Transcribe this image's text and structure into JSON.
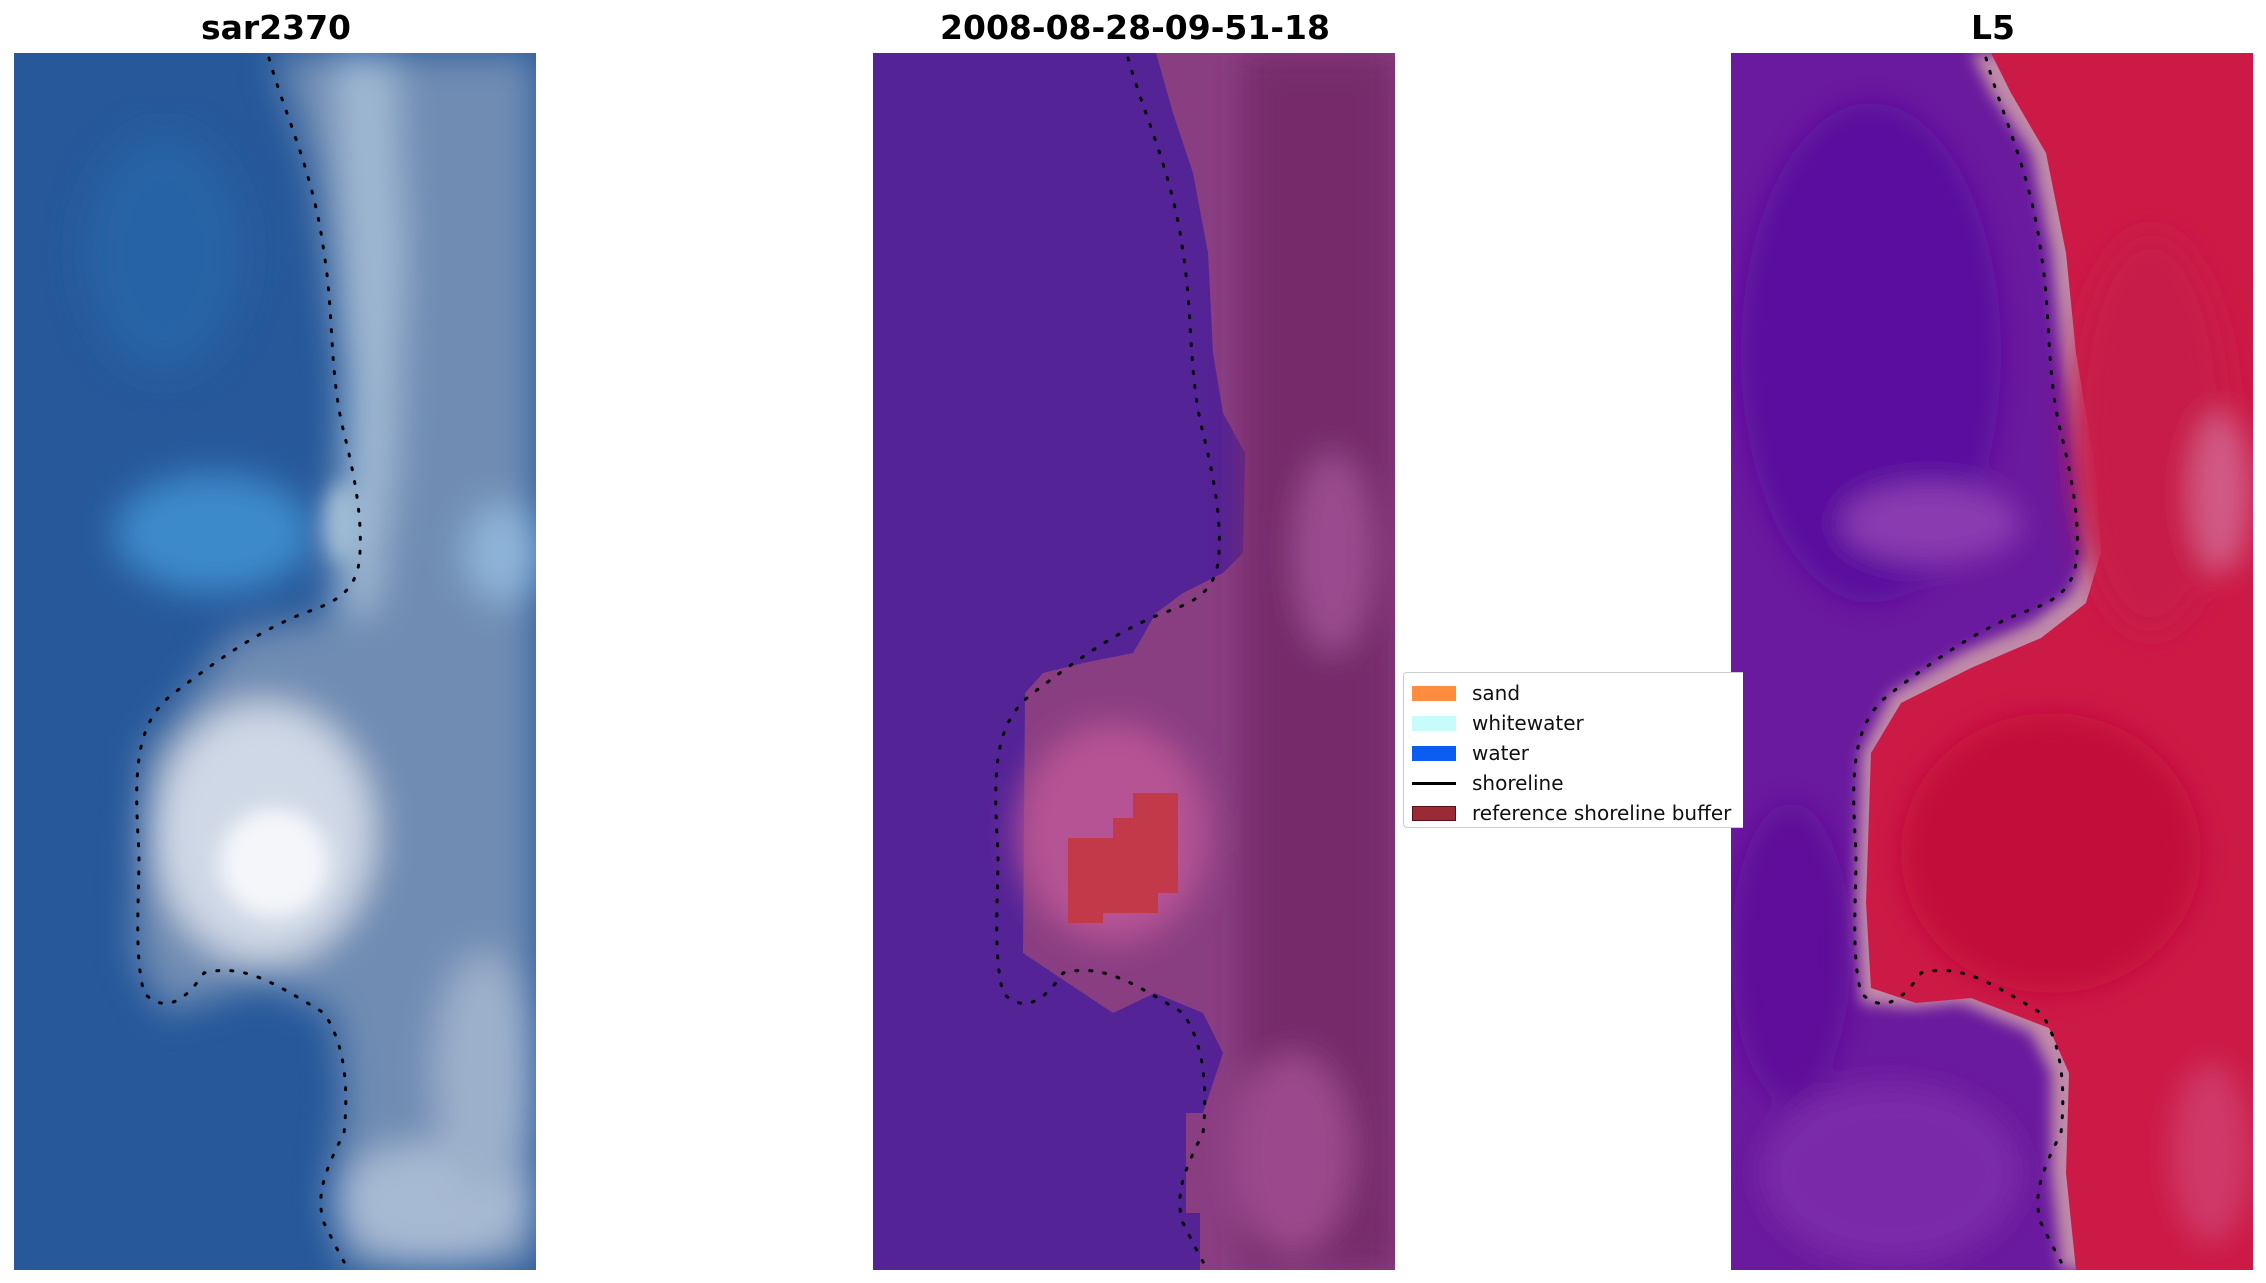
{
  "panels": [
    {
      "title": "sar2370",
      "kind": "satellite-rgb-image"
    },
    {
      "title": "2008-08-28-09-51-18",
      "kind": "classified-image"
    },
    {
      "title": "L5",
      "kind": "index-image"
    }
  ],
  "legend": {
    "items": [
      {
        "label": "sand",
        "type": "patch",
        "color": "#ff8c3f"
      },
      {
        "label": "whitewater",
        "type": "patch",
        "color": "#c8fcfa"
      },
      {
        "label": "water",
        "type": "patch",
        "color": "#0b5cf0"
      },
      {
        "label": "shoreline",
        "type": "line",
        "color": "#000000"
      },
      {
        "label": "reference shoreline buffer",
        "type": "patch",
        "color": "#9a2a35"
      }
    ]
  },
  "colors": {
    "sar_water": "#26589a",
    "sar_land": "#7d93b2",
    "classified_water": "#542396",
    "classified_land": "#8a3e82",
    "classified_buffer": "#c23a4a",
    "index_water": "#6a1a9e",
    "index_land": "#cc1a46",
    "shoreline_dots": "#000000"
  }
}
